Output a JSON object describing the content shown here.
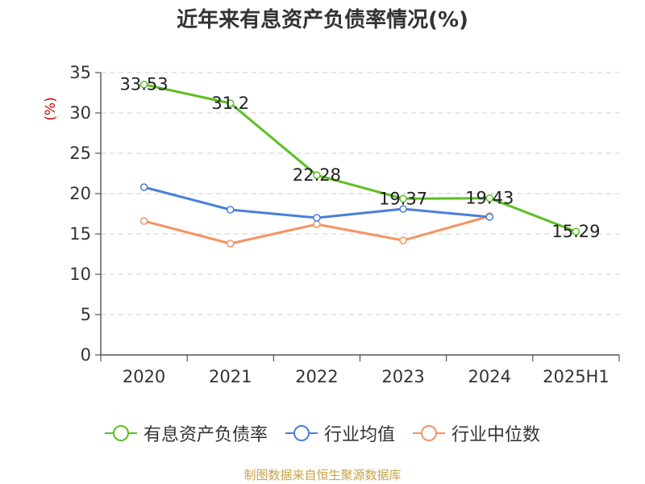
{
  "title": "近年来有息资产负债率情况(%)",
  "source": "制图数据来自恒生聚源数据库",
  "chart_data": {
    "type": "line",
    "categories": [
      "2020",
      "2021",
      "2022",
      "2023",
      "2024",
      "2025H1"
    ],
    "ylabel": "(%)",
    "ylim": [
      0,
      35
    ],
    "yticks": [
      0,
      5,
      10,
      15,
      20,
      25,
      30,
      35
    ],
    "grid": true,
    "legend_position": "bottom",
    "series": [
      {
        "name": "有息资产负债率",
        "color": "#5cc022",
        "values": [
          33.53,
          31.2,
          22.28,
          19.37,
          19.43,
          15.29
        ],
        "labels": [
          "33.53",
          "31.2",
          "22.28",
          "19.37",
          "19.43",
          "15.29"
        ]
      },
      {
        "name": "行业均值",
        "color": "#4a7fd8",
        "values": [
          20.8,
          18.0,
          17.0,
          18.1,
          17.1,
          null
        ]
      },
      {
        "name": "行业中位数",
        "color": "#f59462",
        "values": [
          16.6,
          13.8,
          16.2,
          14.2,
          17.2,
          null
        ]
      }
    ]
  }
}
